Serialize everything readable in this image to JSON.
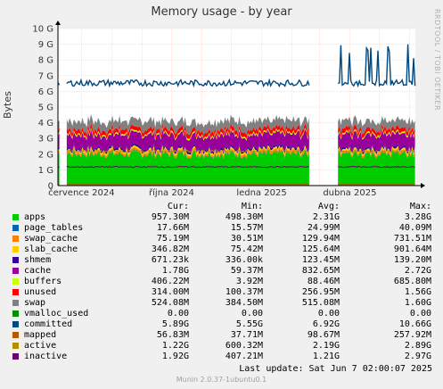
{
  "chart_data": {
    "type": "area",
    "title": "Memory usage - by year",
    "ylabel": "Bytes",
    "side_label": "RRDTOOL / TOBI OETIKER",
    "ylim": [
      0,
      10
    ],
    "yunit": "G",
    "yticks": [
      "0",
      "1 G",
      "2 G",
      "3 G",
      "4 G",
      "5 G",
      "6 G",
      "7 G",
      "8 G",
      "9 G",
      "10 G"
    ],
    "xlabels": [
      "července 2024",
      "října 2024",
      "ledna 2025",
      "dubna 2025"
    ],
    "gaps": [
      [
        "2024-06-09",
        "2024-06-16"
      ],
      [
        "2025-02-20",
        "2025-03-20"
      ]
    ],
    "grid": true,
    "stack_series": [
      {
        "name": "apps",
        "color": "#00cc00",
        "level": 2.0
      },
      {
        "name": "page_tables",
        "color": "#0066b3",
        "level": 0.025
      },
      {
        "name": "swap_cache",
        "color": "#ff8000",
        "level": 0.13
      },
      {
        "name": "slab_cache",
        "color": "#ffcc00",
        "level": 0.13
      },
      {
        "name": "shmem",
        "color": "#330099",
        "level": 0.13
      },
      {
        "name": "cache",
        "color": "#990099",
        "level": 0.83
      },
      {
        "name": "buffers",
        "color": "#ccff00",
        "level": 0.09
      },
      {
        "name": "unused",
        "color": "#ff0000",
        "level": 0.26
      },
      {
        "name": "swap",
        "color": "#808080",
        "level": 0.52
      }
    ],
    "line_series": [
      {
        "name": "vmalloc_used",
        "color": "#008f00",
        "level": 0.0
      },
      {
        "name": "committed",
        "color": "#00487d",
        "level": 6.6
      },
      {
        "name": "mapped",
        "color": "#b35a00",
        "level": 0.1
      },
      {
        "name": "active",
        "color": "#b38f00",
        "level": 2.2
      },
      {
        "name": "inactive",
        "color": "#6b006b",
        "level": 1.2
      }
    ]
  },
  "legend": {
    "headers": {
      "cur": "Cur:",
      "min": "Min:",
      "avg": "Avg:",
      "max": "Max:"
    },
    "rows": [
      {
        "name": "apps",
        "color": "#00cc00",
        "cur": "957.30M",
        "min": "498.30M",
        "avg": "2.31G",
        "max": "3.28G"
      },
      {
        "name": "page_tables",
        "color": "#0066b3",
        "cur": "17.66M",
        "min": "15.57M",
        "avg": "24.99M",
        "max": "40.09M"
      },
      {
        "name": "swap_cache",
        "color": "#ff8000",
        "cur": "75.19M",
        "min": "30.51M",
        "avg": "129.94M",
        "max": "731.51M"
      },
      {
        "name": "slab_cache",
        "color": "#ffcc00",
        "cur": "346.82M",
        "min": "75.42M",
        "avg": "125.64M",
        "max": "901.64M"
      },
      {
        "name": "shmem",
        "color": "#330099",
        "cur": "671.23k",
        "min": "336.00k",
        "avg": "123.45M",
        "max": "139.20M"
      },
      {
        "name": "cache",
        "color": "#990099",
        "cur": "1.78G",
        "min": "59.37M",
        "avg": "832.65M",
        "max": "2.72G"
      },
      {
        "name": "buffers",
        "color": "#ccff00",
        "cur": "406.22M",
        "min": "3.92M",
        "avg": "88.46M",
        "max": "685.80M"
      },
      {
        "name": "unused",
        "color": "#ff0000",
        "cur": "314.00M",
        "min": "100.37M",
        "avg": "256.95M",
        "max": "1.56G"
      },
      {
        "name": "swap",
        "color": "#808080",
        "cur": "524.08M",
        "min": "384.50M",
        "avg": "515.08M",
        "max": "1.60G"
      },
      {
        "name": "vmalloc_used",
        "color": "#008f00",
        "cur": "0.00",
        "min": "0.00",
        "avg": "0.00",
        "max": "0.00"
      },
      {
        "name": "committed",
        "color": "#00487d",
        "cur": "5.89G",
        "min": "5.55G",
        "avg": "6.92G",
        "max": "10.66G"
      },
      {
        "name": "mapped",
        "color": "#b35a00",
        "cur": "56.83M",
        "min": "37.71M",
        "avg": "98.67M",
        "max": "257.92M"
      },
      {
        "name": "active",
        "color": "#b38f00",
        "cur": "1.22G",
        "min": "600.32M",
        "avg": "2.19G",
        "max": "2.89G"
      },
      {
        "name": "inactive",
        "color": "#6b006b",
        "cur": "1.92G",
        "min": "407.21M",
        "avg": "1.21G",
        "max": "2.97G"
      }
    ]
  },
  "footer": {
    "last_update": "Last update: Sat Jun  7 02:00:07 2025",
    "munin": "Munin 2.0.37-1ubuntu0.1"
  }
}
